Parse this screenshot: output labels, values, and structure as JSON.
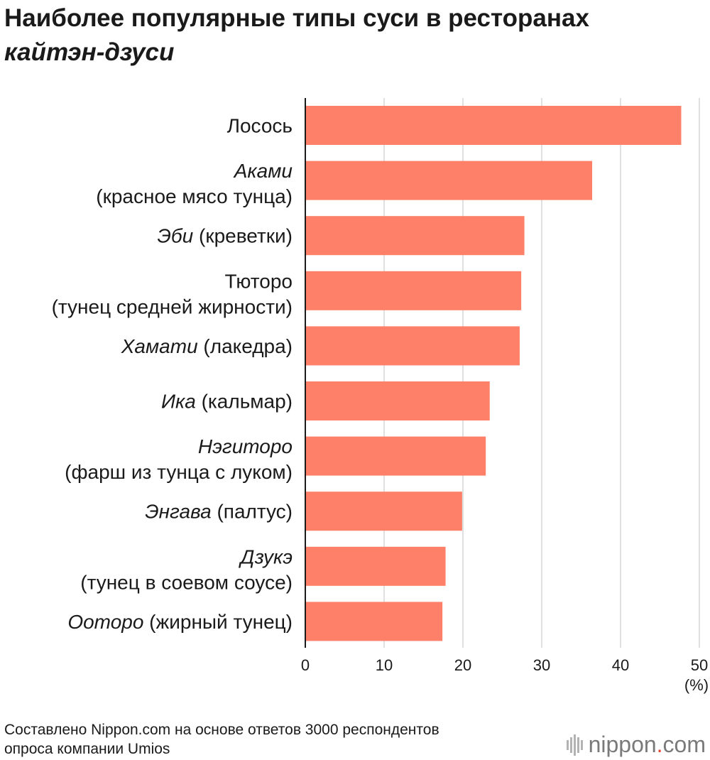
{
  "chart_data": {
    "type": "bar",
    "orientation": "horizontal",
    "title_line1": "Наиболее популярные типы суси в ресторанах",
    "title_line2": "кайтэн-дзуси",
    "categories": [
      {
        "line1_italic": "",
        "line1_rest": "Лосось",
        "line2": ""
      },
      {
        "line1_italic": "Аками",
        "line1_rest": "",
        "line2": "(красное мясо тунца)"
      },
      {
        "line1_italic": "Эби",
        "line1_rest": " (креветки)",
        "line2": ""
      },
      {
        "line1_italic": "",
        "line1_rest": "Тюторо",
        "line2": "(тунец средней жирности)"
      },
      {
        "line1_italic": "Хамати",
        "line1_rest": " (лакедра)",
        "line2": ""
      },
      {
        "line1_italic": "Ика",
        "line1_rest": " (кальмар)",
        "line2": ""
      },
      {
        "line1_italic": "Нэгиторо",
        "line1_rest": "",
        "line2": "(фарш из тунца с луком)"
      },
      {
        "line1_italic": "Энгава",
        "line1_rest": " (палтус)",
        "line2": ""
      },
      {
        "line1_italic": "Дзукэ",
        "line1_rest": "",
        "line2": "(тунец в соевом соусе)"
      },
      {
        "line1_italic": "Оотopo",
        "line1_rest": " (жирный тунец)",
        "line2": ""
      }
    ],
    "values": [
      47.7,
      36.4,
      27.8,
      27.4,
      27.2,
      23.4,
      22.9,
      19.9,
      17.8,
      17.4
    ],
    "xlim": [
      0,
      50
    ],
    "ticks": [
      "0",
      "10",
      "20",
      "30",
      "40",
      "50"
    ],
    "unit_label": "(%)",
    "grid": true,
    "bar_color": "#fe8068"
  },
  "source_line1": "Составлено Nippon.com на основе ответов 3000 респондентов",
  "source_line2": "опроса компании Umios",
  "logo": {
    "name": "nippon",
    "dot": ".",
    "domain": "com"
  }
}
